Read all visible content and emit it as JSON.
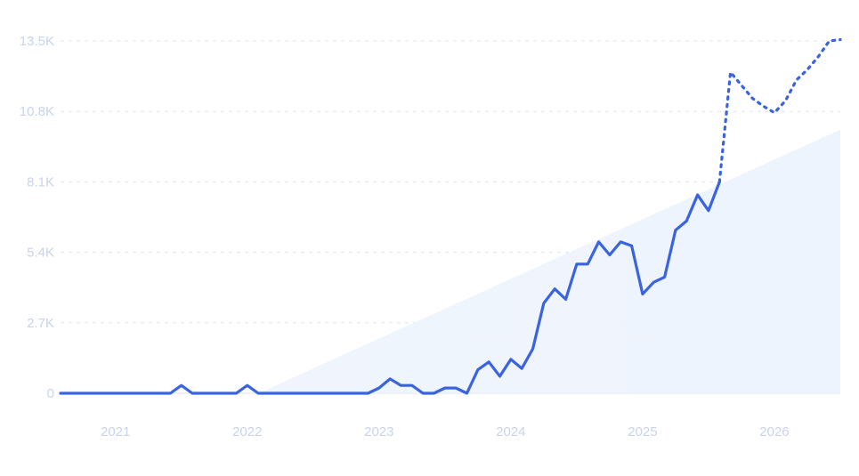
{
  "chart_data": {
    "type": "line",
    "title": "",
    "xlabel": "",
    "ylabel": "",
    "y_ticks": [
      "0",
      "2.7K",
      "5.4K",
      "8.1K",
      "10.8K",
      "13.5K"
    ],
    "y_tick_values": [
      0,
      2700,
      5400,
      8100,
      10800,
      13500
    ],
    "x_ticks": [
      "2021",
      "2022",
      "2023",
      "2024",
      "2025",
      "2026"
    ],
    "x_tick_values": [
      "2021-01",
      "2022-01",
      "2023-01",
      "2024-01",
      "2025-01",
      "2026-01"
    ],
    "xlim": [
      "2020-08",
      "2026-07"
    ],
    "ylim": [
      0,
      13500
    ],
    "grid": "horizontal dashed",
    "colors": {
      "line": "#3a63de",
      "trend_fill": "#eef4fd",
      "tick_text": "#c9d3ea",
      "grid": "#dfe4ee"
    },
    "trend": {
      "type": "area",
      "start": [
        "2022-02",
        0
      ],
      "end": [
        "2026-07",
        10100
      ]
    },
    "series": [
      {
        "style": "solid",
        "x": [
          "2020-08",
          "2020-09",
          "2020-10",
          "2020-11",
          "2020-12",
          "2021-01",
          "2021-02",
          "2021-03",
          "2021-04",
          "2021-05",
          "2021-06",
          "2021-07",
          "2021-08",
          "2021-09",
          "2021-10",
          "2021-11",
          "2021-12",
          "2022-01",
          "2022-02",
          "2022-03",
          "2022-04",
          "2022-05",
          "2022-06",
          "2022-07",
          "2022-08",
          "2022-09",
          "2022-10",
          "2022-11",
          "2022-12",
          "2023-01",
          "2023-02",
          "2023-03",
          "2023-04",
          "2023-05",
          "2023-06",
          "2023-07",
          "2023-08",
          "2023-09",
          "2023-10",
          "2023-11",
          "2023-12",
          "2024-01",
          "2024-02",
          "2024-03",
          "2024-04",
          "2024-05",
          "2024-06",
          "2024-07",
          "2024-08",
          "2024-09",
          "2024-10",
          "2024-11",
          "2024-12",
          "2025-01",
          "2025-02",
          "2025-03",
          "2025-04",
          "2025-05",
          "2025-06",
          "2025-07"
        ],
        "values": [
          0,
          0,
          0,
          0,
          0,
          0,
          0,
          0,
          0,
          0,
          0,
          300,
          0,
          0,
          0,
          0,
          0,
          300,
          0,
          0,
          0,
          0,
          0,
          0,
          0,
          0,
          0,
          0,
          0,
          200,
          550,
          300,
          300,
          0,
          0,
          200,
          200,
          0,
          900,
          1200,
          650,
          1300,
          950,
          1700,
          3450,
          4000,
          3600,
          4950,
          4950,
          5800,
          5300,
          5800,
          5650,
          3800,
          4250,
          4450,
          6250,
          6600,
          7600,
          7000
        ],
        "values_tail": {
          "x": "2025-08",
          "value": 8100
        }
      },
      {
        "style": "dotted",
        "x": [
          "2025-08",
          "2025-09",
          "2025-10",
          "2025-11",
          "2025-12",
          "2026-01",
          "2026-02",
          "2026-03",
          "2026-04",
          "2026-05",
          "2026-06",
          "2026-07"
        ],
        "values": [
          8100,
          12300,
          11800,
          11300,
          11000,
          10750,
          11200,
          12000,
          12400,
          12900,
          13500,
          13550
        ]
      }
    ]
  }
}
